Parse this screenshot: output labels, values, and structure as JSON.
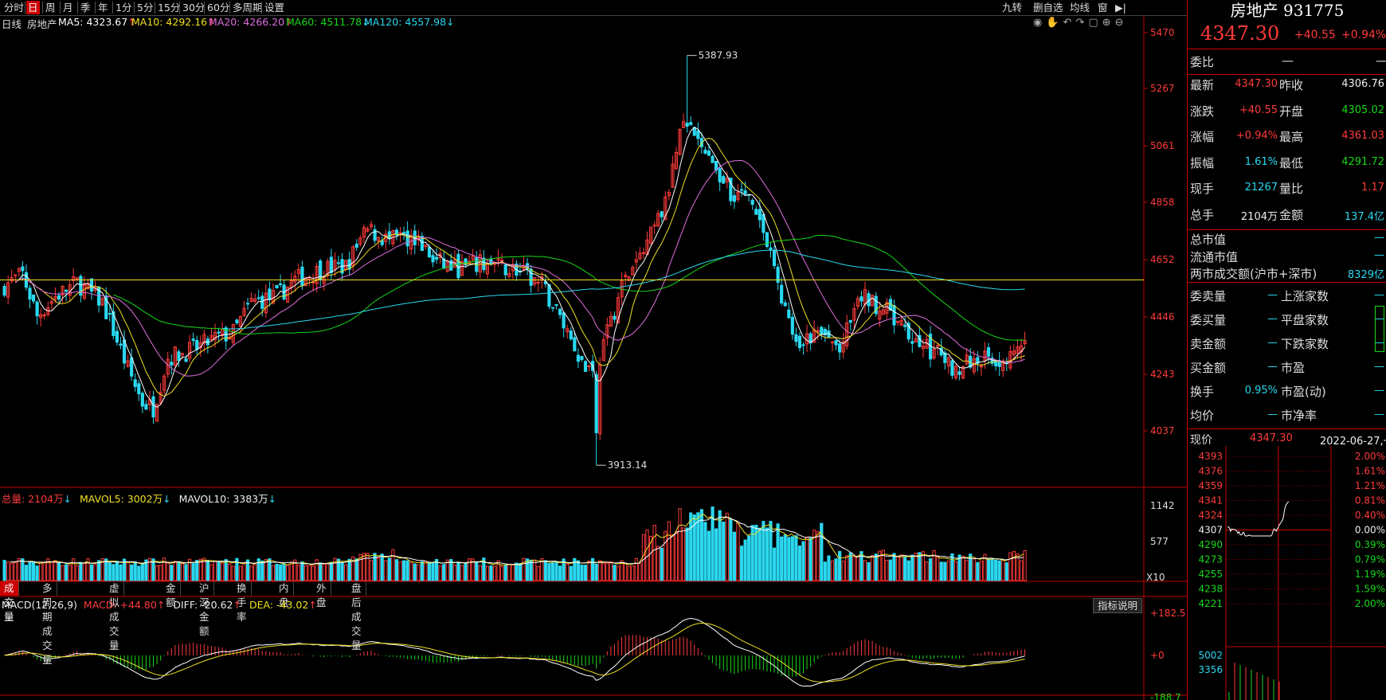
{
  "toolbar": {
    "left_items": [
      "分时",
      "日",
      "周",
      "月",
      "季",
      "年",
      "1分",
      "5分",
      "15分",
      "30分",
      "60分",
      "多周期",
      "设置"
    ],
    "active_index": 1,
    "right_items": [
      "九转",
      "删自选",
      "均线",
      "窗"
    ]
  },
  "info": {
    "period": "日线",
    "name": "房地产",
    "ma5": "MA5: 4323.67",
    "ma10": "MA10: 4292.16",
    "ma20": "MA20: 4266.20",
    "ma60": "MA60: 4511.78",
    "ma120": "MA120: 4557.98",
    "arrow_up": "↑",
    "arrow_down": "↓"
  },
  "colors": {
    "up": "#ff3b3b",
    "down": "#2ad8f0",
    "ma5": "#ffffff",
    "ma10": "#f0e020",
    "ma20": "#e070e0",
    "ma60": "#18d818",
    "ma120": "#2ad8f0",
    "axis": "#c00000"
  },
  "price_axis": {
    "labels": [
      "5470",
      "5267",
      "5061",
      "4858",
      "4652",
      "4446",
      "4243",
      "4037"
    ],
    "high_marker": "5387.93",
    "low_marker": "3913.14",
    "ref_line_value": 4580
  },
  "volume": {
    "legend_total": "总量: 2104万",
    "legend_mavol5": "MAVOL5: 3002万",
    "legend_mavol10": "MAVOL10: 3383万",
    "axis_labels": [
      "1142",
      "577"
    ],
    "unit": "X10"
  },
  "volume_tabs": [
    "成交量",
    "多周期成交量",
    "虚拟成交量",
    "金额",
    "沪深金额",
    "换手率",
    "内盘",
    "外盘",
    "盘后成交量"
  ],
  "macd": {
    "legend_name": "MACD(12,26,9)",
    "legend_macd": "MACD: +44.80",
    "legend_diff": "DIFF: -20.62",
    "legend_dea": "DEA: -43.02",
    "axis_labels": [
      "+182.5",
      "+0",
      "-188.7"
    ],
    "button": "指标说明"
  },
  "chart_data": {
    "type": "candlestick",
    "price_range": [
      3913.14,
      5387.93
    ],
    "last_close": 4347.3,
    "ma_last": {
      "ma5": 4323.67,
      "ma10": 4292.16,
      "ma20": 4266.2,
      "ma60": 4511.78,
      "ma120": 4557.98
    }
  },
  "panel": {
    "title": "房地产 931775",
    "price": "4347.30",
    "change": "+40.55",
    "change_pct": "+0.94%",
    "weibi_label": "委比",
    "weibi_val": "—",
    "weibi_val2": "—",
    "rows": [
      {
        "l1": "最新",
        "v1": "4347.30",
        "c1": "red",
        "l2": "昨收",
        "v2": "4306.76",
        "c2": "white"
      },
      {
        "l1": "涨跌",
        "v1": "+40.55",
        "c1": "red",
        "l2": "开盘",
        "v2": "4305.02",
        "c2": "green"
      },
      {
        "l1": "涨幅",
        "v1": "+0.94%",
        "c1": "red",
        "l2": "最高",
        "v2": "4361.03",
        "c2": "red"
      },
      {
        "l1": "振幅",
        "v1": "1.61%",
        "c1": "cyan",
        "l2": "最低",
        "v2": "4291.72",
        "c2": "green"
      },
      {
        "l1": "现手",
        "v1": "21267",
        "c1": "cyan",
        "l2": "量比",
        "v2": "1.17",
        "c2": "red"
      },
      {
        "l1": "总手",
        "v1": "2104万",
        "c1": "white",
        "l2": "金额",
        "v2": "137.4亿",
        "c2": "cyan"
      }
    ],
    "mkt": [
      {
        "l": "总市值",
        "v": "—"
      },
      {
        "l": "流通市值",
        "v": "—"
      },
      {
        "l": "两市成交额(沪市+深市)",
        "v": "8329亿"
      }
    ],
    "rows2": [
      {
        "l1": "委卖量",
        "v1": "—",
        "l2": "上涨家数",
        "v2": "—"
      },
      {
        "l1": "委买量",
        "v1": "—",
        "l2": "平盘家数",
        "v2": "—"
      },
      {
        "l1": "卖金额",
        "v1": "—",
        "l2": "下跌家数",
        "v2": "—"
      },
      {
        "l1": "买金额",
        "v1": "—",
        "l2": "市盈",
        "v2": "—"
      },
      {
        "l1": "换手",
        "v1": "0.95%",
        "l2": "市盈(动)",
        "v2": "—"
      },
      {
        "l1": "均价",
        "v1": "—",
        "l2": "市净率",
        "v2": "—"
      }
    ],
    "now_label": "现价",
    "now_val": "4347.30",
    "date": "2022-06-27,一",
    "mini_left": [
      "4393",
      "4376",
      "4359",
      "4341",
      "4324",
      "4307",
      "4290",
      "4273",
      "4255",
      "4238",
      "4221"
    ],
    "mini_right": [
      "2.00%",
      "1.61%",
      "1.21%",
      "0.81%",
      "0.40%",
      "0.00%",
      "0.39%",
      "0.79%",
      "1.19%",
      "1.59%",
      "2.00%"
    ],
    "mini_vol": [
      "5002",
      "3356"
    ]
  }
}
